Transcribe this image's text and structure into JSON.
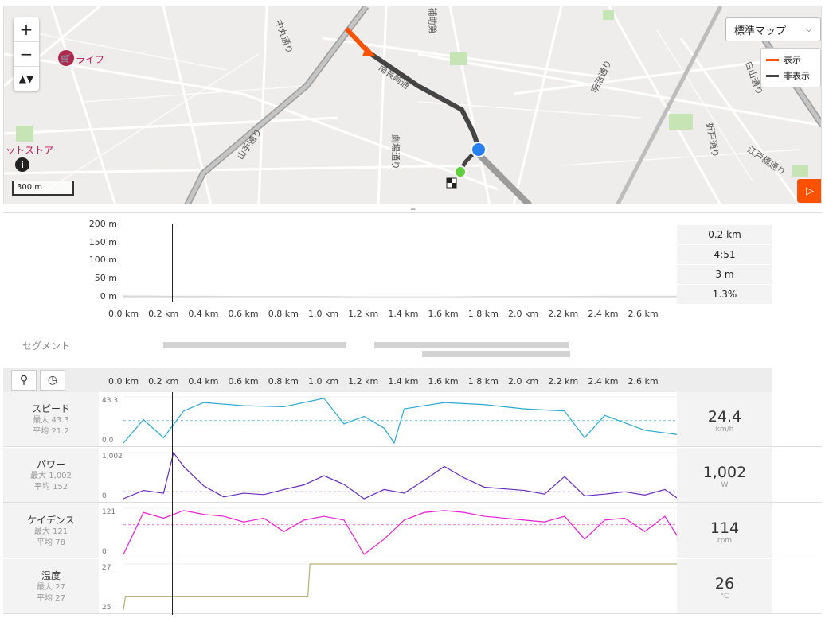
{
  "map": {
    "zoom_in": "+",
    "zoom_out": "−",
    "north": "▲▼",
    "map_type": "標準マップ",
    "legend": [
      {
        "label": "表示",
        "color": "#fc5200"
      },
      {
        "label": "非表示",
        "color": "#444444"
      }
    ],
    "scale": "300 m",
    "poi_life": "ライフ",
    "poi_store": "ットストア",
    "streets": [
      "中丸通り",
      "山手通り",
      "劇場通り",
      "補助第",
      "明治通り",
      "折戸通り",
      "白山通り",
      "江戸橋通り",
      "南長崎通"
    ]
  },
  "elevation": {
    "y_labels": [
      "200 m",
      "150 m",
      "100 m",
      "50 m",
      "0 m"
    ],
    "x_labels": [
      "0.0 km",
      "0.2 km",
      "0.4 km",
      "0.6 km",
      "0.8 km",
      "1.0 km",
      "1.2 km",
      "1.4 km",
      "1.6 km",
      "1.8 km",
      "2.0 km",
      "2.2 km",
      "2.4 km",
      "2.6 km"
    ],
    "stats": [
      "0.2 km",
      "4:51",
      "3 m",
      "1.3%"
    ]
  },
  "segments": {
    "label": "セグメント"
  },
  "streams": [
    {
      "name": "スピード",
      "max_label": "最大 43.3",
      "avg_label": "平均 21.2",
      "axis_max": "43.3",
      "axis_min": "0.0",
      "value": "24.4",
      "unit": "km/h",
      "color": "#29a8d1"
    },
    {
      "name": "パワー",
      "max_label": "最大 1,002",
      "avg_label": "平均 152",
      "axis_max": "1,002",
      "axis_min": "0",
      "value": "1,002",
      "unit": "W",
      "color": "#6a2bb8"
    },
    {
      "name": "ケイデンス",
      "max_label": "最大 121",
      "avg_label": "平均 78",
      "axis_max": "121",
      "axis_min": "0",
      "value": "114",
      "unit": "rpm",
      "color": "#e61ecf"
    },
    {
      "name": "温度",
      "max_label": "最大 27",
      "avg_label": "平均 27",
      "axis_max": "27",
      "axis_min": "25",
      "value": "26",
      "unit": "°C",
      "color": "#b5b07a"
    }
  ],
  "chart_data": [
    {
      "type": "area",
      "x": [
        0.0,
        0.2,
        0.4,
        0.6,
        0.8,
        1.0,
        1.2,
        1.4,
        1.6,
        1.8,
        2.0,
        2.2,
        2.4,
        2.6,
        2.76
      ],
      "values": [
        6,
        5,
        5,
        4,
        4,
        4,
        3,
        3,
        3,
        4,
        4,
        4,
        5,
        5,
        5
      ],
      "ylim": [
        0,
        200
      ],
      "xlabel": "",
      "ylabel": ""
    },
    {
      "type": "line",
      "name": "スピード",
      "x": [
        0.0,
        0.1,
        0.2,
        0.3,
        0.4,
        0.6,
        0.8,
        1.0,
        1.1,
        1.2,
        1.3,
        1.35,
        1.4,
        1.6,
        1.8,
        2.0,
        2.2,
        2.3,
        2.4,
        2.6,
        2.76
      ],
      "values": [
        0,
        22,
        5,
        30,
        38,
        35,
        34,
        42,
        18,
        25,
        14,
        0,
        32,
        38,
        36,
        32,
        30,
        5,
        26,
        12,
        8
      ],
      "ylim": [
        0,
        43.3
      ],
      "avg": 21.2
    },
    {
      "type": "line",
      "name": "パワー",
      "x": [
        0.0,
        0.1,
        0.2,
        0.25,
        0.3,
        0.4,
        0.5,
        0.6,
        0.7,
        0.8,
        0.9,
        1.0,
        1.1,
        1.2,
        1.3,
        1.4,
        1.5,
        1.6,
        1.7,
        1.8,
        2.0,
        2.1,
        2.2,
        2.3,
        2.4,
        2.5,
        2.6,
        2.7,
        2.76
      ],
      "values": [
        0,
        180,
        120,
        1002,
        700,
        280,
        40,
        120,
        90,
        200,
        300,
        500,
        310,
        0,
        200,
        120,
        400,
        700,
        450,
        250,
        180,
        100,
        480,
        60,
        100,
        150,
        80,
        200,
        20
      ],
      "ylim": [
        0,
        1002
      ],
      "avg": 152
    },
    {
      "type": "line",
      "name": "ケイデンス",
      "x": [
        0.0,
        0.1,
        0.2,
        0.3,
        0.4,
        0.5,
        0.6,
        0.7,
        0.8,
        0.9,
        1.0,
        1.1,
        1.2,
        1.3,
        1.4,
        1.5,
        1.6,
        1.7,
        1.8,
        1.9,
        2.0,
        2.1,
        2.2,
        2.3,
        2.4,
        2.5,
        2.6,
        2.7,
        2.76
      ],
      "values": [
        0,
        110,
        95,
        115,
        105,
        100,
        85,
        95,
        60,
        90,
        100,
        90,
        0,
        40,
        90,
        110,
        115,
        110,
        100,
        95,
        90,
        85,
        100,
        40,
        90,
        95,
        60,
        100,
        50
      ],
      "ylim": [
        0,
        121
      ],
      "avg": 78
    },
    {
      "type": "line",
      "name": "温度",
      "x": [
        0.0,
        0.01,
        0.92,
        0.93,
        2.76
      ],
      "values": [
        25,
        25.6,
        25.6,
        27,
        27
      ],
      "ylim": [
        25,
        27
      ]
    }
  ]
}
